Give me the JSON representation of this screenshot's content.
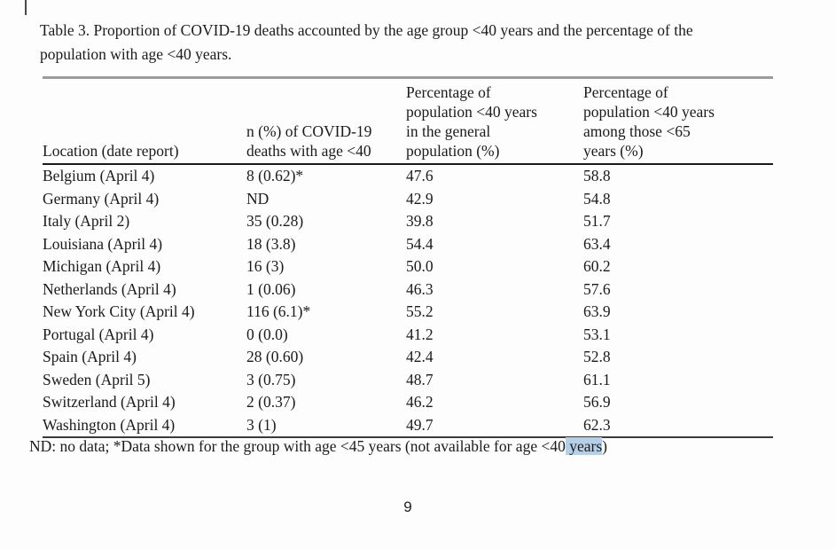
{
  "caption": "Table 3. Proportion of COVID-19 deaths accounted by the age group <40 years and the percentage of the\npopulation with age <40 years.",
  "table": {
    "headers": [
      "Location (date report)",
      "n (%) of COVID-19\ndeaths with age <40",
      "Percentage of\npopulation <40 years\nin the general\npopulation (%)",
      "Percentage of\npopulation <40 years\namong those <65\nyears (%)"
    ],
    "rows": [
      [
        "Belgium (April 4)",
        "8 (0.62)*",
        "47.6",
        "58.8"
      ],
      [
        "Germany (April 4)",
        "ND",
        "42.9",
        "54.8"
      ],
      [
        "Italy (April 2)",
        "35 (0.28)",
        "39.8",
        "51.7"
      ],
      [
        "Louisiana (April 4)",
        "18 (3.8)",
        "54.4",
        "63.4"
      ],
      [
        "Michigan (April 4)",
        "16 (3)",
        "50.0",
        "60.2"
      ],
      [
        "Netherlands (April 4)",
        "1 (0.06)",
        "46.3",
        "57.6"
      ],
      [
        "New York City (April 4)",
        "116 (6.1)*",
        "55.2",
        "63.9"
      ],
      [
        "Portugal (April 4)",
        "0 (0.0)",
        "41.2",
        "53.1"
      ],
      [
        "Spain (April 4)",
        "28 (0.60)",
        "42.4",
        "52.8"
      ],
      [
        "Sweden (April 5)",
        "3 (0.75)",
        "48.7",
        "61.1"
      ],
      [
        "Switzerland (April 4)",
        "2 (0.37)",
        "46.2",
        "56.9"
      ],
      [
        "Washington (April 4)",
        "3 (1)",
        "49.7",
        "62.3"
      ]
    ]
  },
  "footnote": {
    "prefix": "ND: no data; *Data shown for the group with age <45 years (not available for age <40",
    "highlighted": " years",
    "suffix": ")"
  },
  "page_number": "9",
  "colors": {
    "selection_highlight": "#b5cfe9",
    "rule_top": "#9b9b9b",
    "rule_header": "#1a1a1a",
    "rule_bottom": "#3a3a3a",
    "text": "#1b1b1b"
  }
}
